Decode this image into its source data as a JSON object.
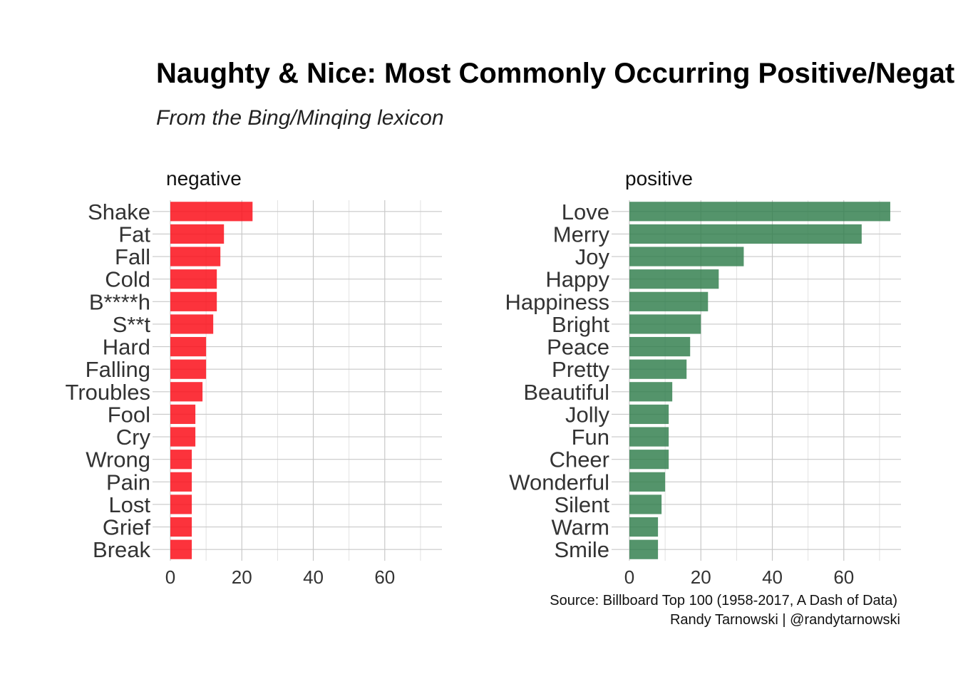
{
  "chart_data": {
    "type": "bar",
    "orientation": "horizontal",
    "title": "Naughty & Nice: Most Commonly Occurring Positive/Negat",
    "subtitle": "From the Bing/Minqing lexicon",
    "caption_lines": [
      "Source: Billboard Top 100 (1958-2017, A Dash of Data)",
      "Randy Tarnowski | @randytarnowski"
    ],
    "xlim": [
      0,
      76
    ],
    "x_ticks": [
      0,
      20,
      40,
      60
    ],
    "grid": true,
    "panels": [
      {
        "name": "negative",
        "color": "#fb0f1a",
        "categories": [
          "Shake",
          "Fat",
          "Fall",
          "Cold",
          "B****h",
          "S**t",
          "Hard",
          "Falling",
          "Troubles",
          "Fool",
          "Cry",
          "Wrong",
          "Pain",
          "Lost",
          "Grief",
          "Break"
        ],
        "values": [
          23,
          15,
          14,
          13,
          13,
          12,
          10,
          10,
          9,
          7,
          7,
          6,
          6,
          6,
          6,
          6
        ]
      },
      {
        "name": "positive",
        "color": "#2e7d4a",
        "categories": [
          "Love",
          "Merry",
          "Joy",
          "Happy",
          "Happiness",
          "Bright",
          "Peace",
          "Pretty",
          "Beautiful",
          "Jolly",
          "Fun",
          "Cheer",
          "Wonderful",
          "Silent",
          "Warm",
          "Smile"
        ],
        "values": [
          73,
          65,
          32,
          25,
          22,
          20,
          17,
          16,
          12,
          11,
          11,
          11,
          10,
          9,
          8,
          8
        ]
      }
    ]
  }
}
